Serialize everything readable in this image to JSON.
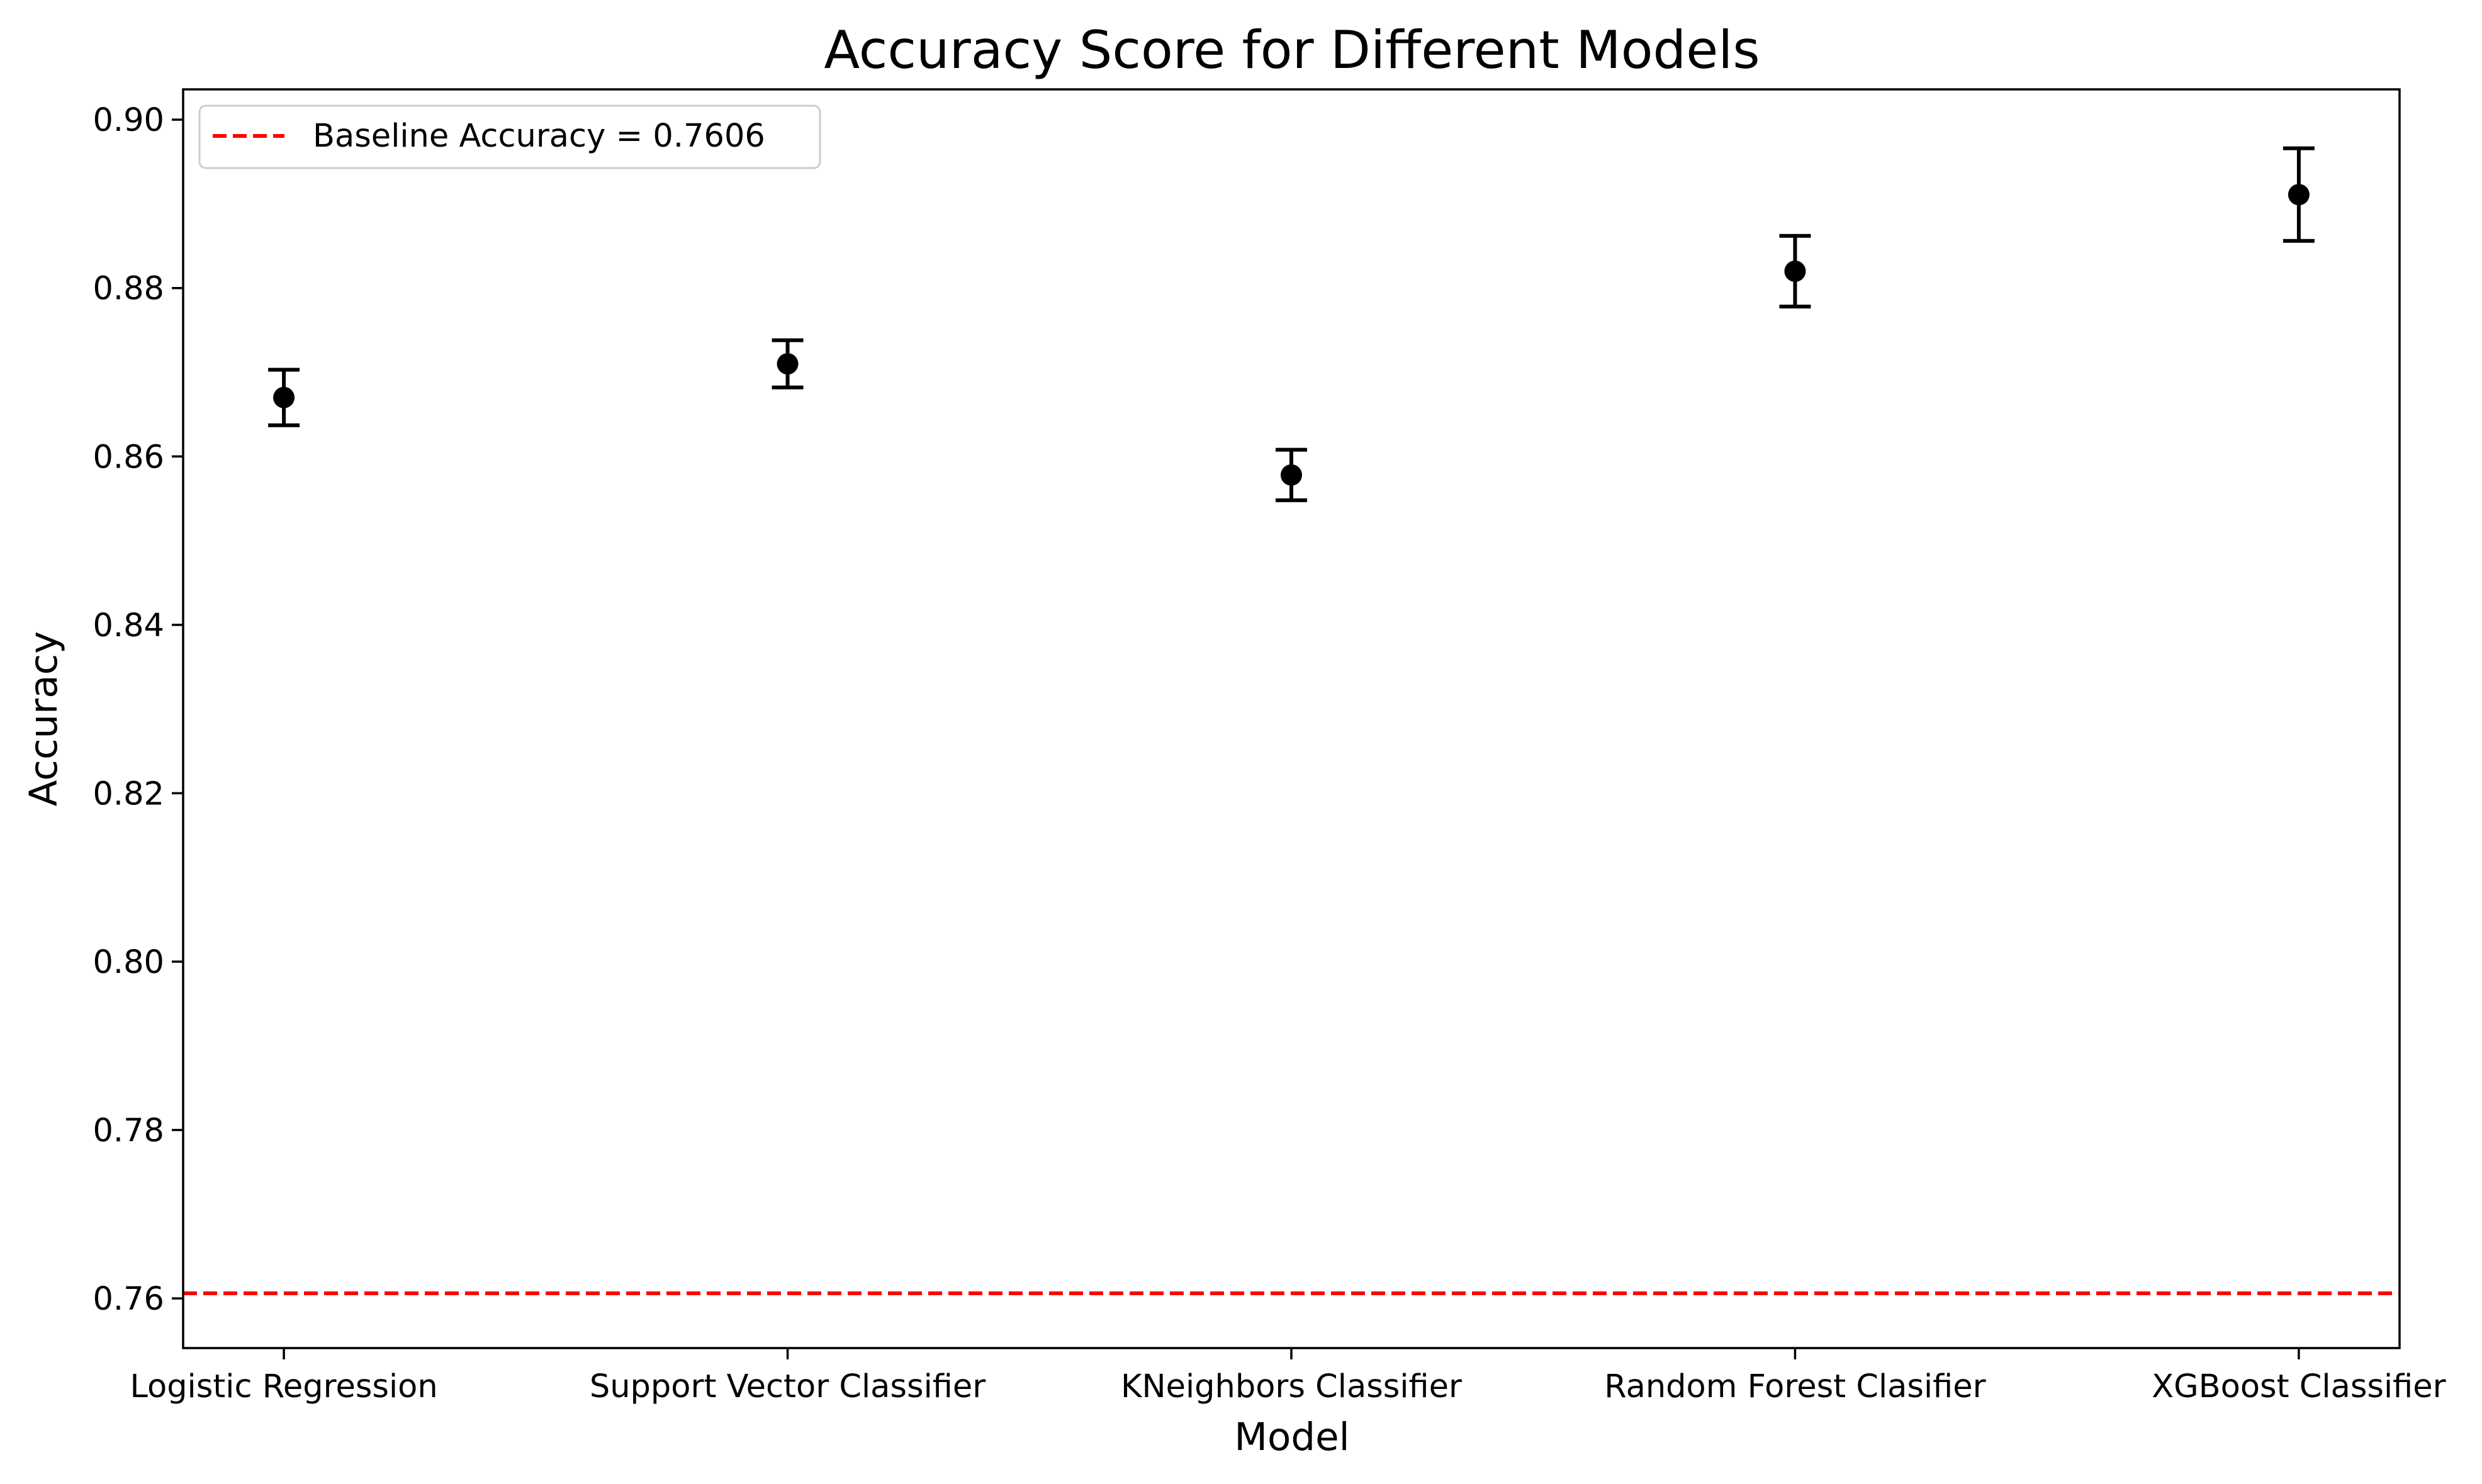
{
  "chart_data": {
    "type": "scatter",
    "title": "Accuracy Score for Different Models",
    "xlabel": "Model",
    "ylabel": "Accuracy",
    "categories": [
      "Logistic Regression",
      "Support Vector Classifier",
      "KNeighbors Classifier",
      "Random Forest Clasifier",
      "XGBoost Classifier"
    ],
    "series": [
      {
        "values": [
          0.867,
          0.871,
          0.8578,
          0.882,
          0.8911
        ],
        "errors": [
          0.0033,
          0.0028,
          0.003,
          0.0042,
          0.0055
        ],
        "color": "#000000"
      }
    ],
    "baseline": {
      "value": 0.7606,
      "label": "Baseline Accuracy = 0.7606",
      "color": "#ff0000",
      "style": "dashed"
    },
    "yticks": [
      0.76,
      0.78,
      0.8,
      0.82,
      0.84,
      0.86,
      0.88,
      0.9
    ],
    "ytick_labels": [
      "0.76",
      "0.78",
      "0.80",
      "0.82",
      "0.84",
      "0.86",
      "0.88",
      "0.90"
    ],
    "ylim": [
      0.7541,
      0.9036
    ],
    "grid": false,
    "legend_position": "top-left"
  }
}
